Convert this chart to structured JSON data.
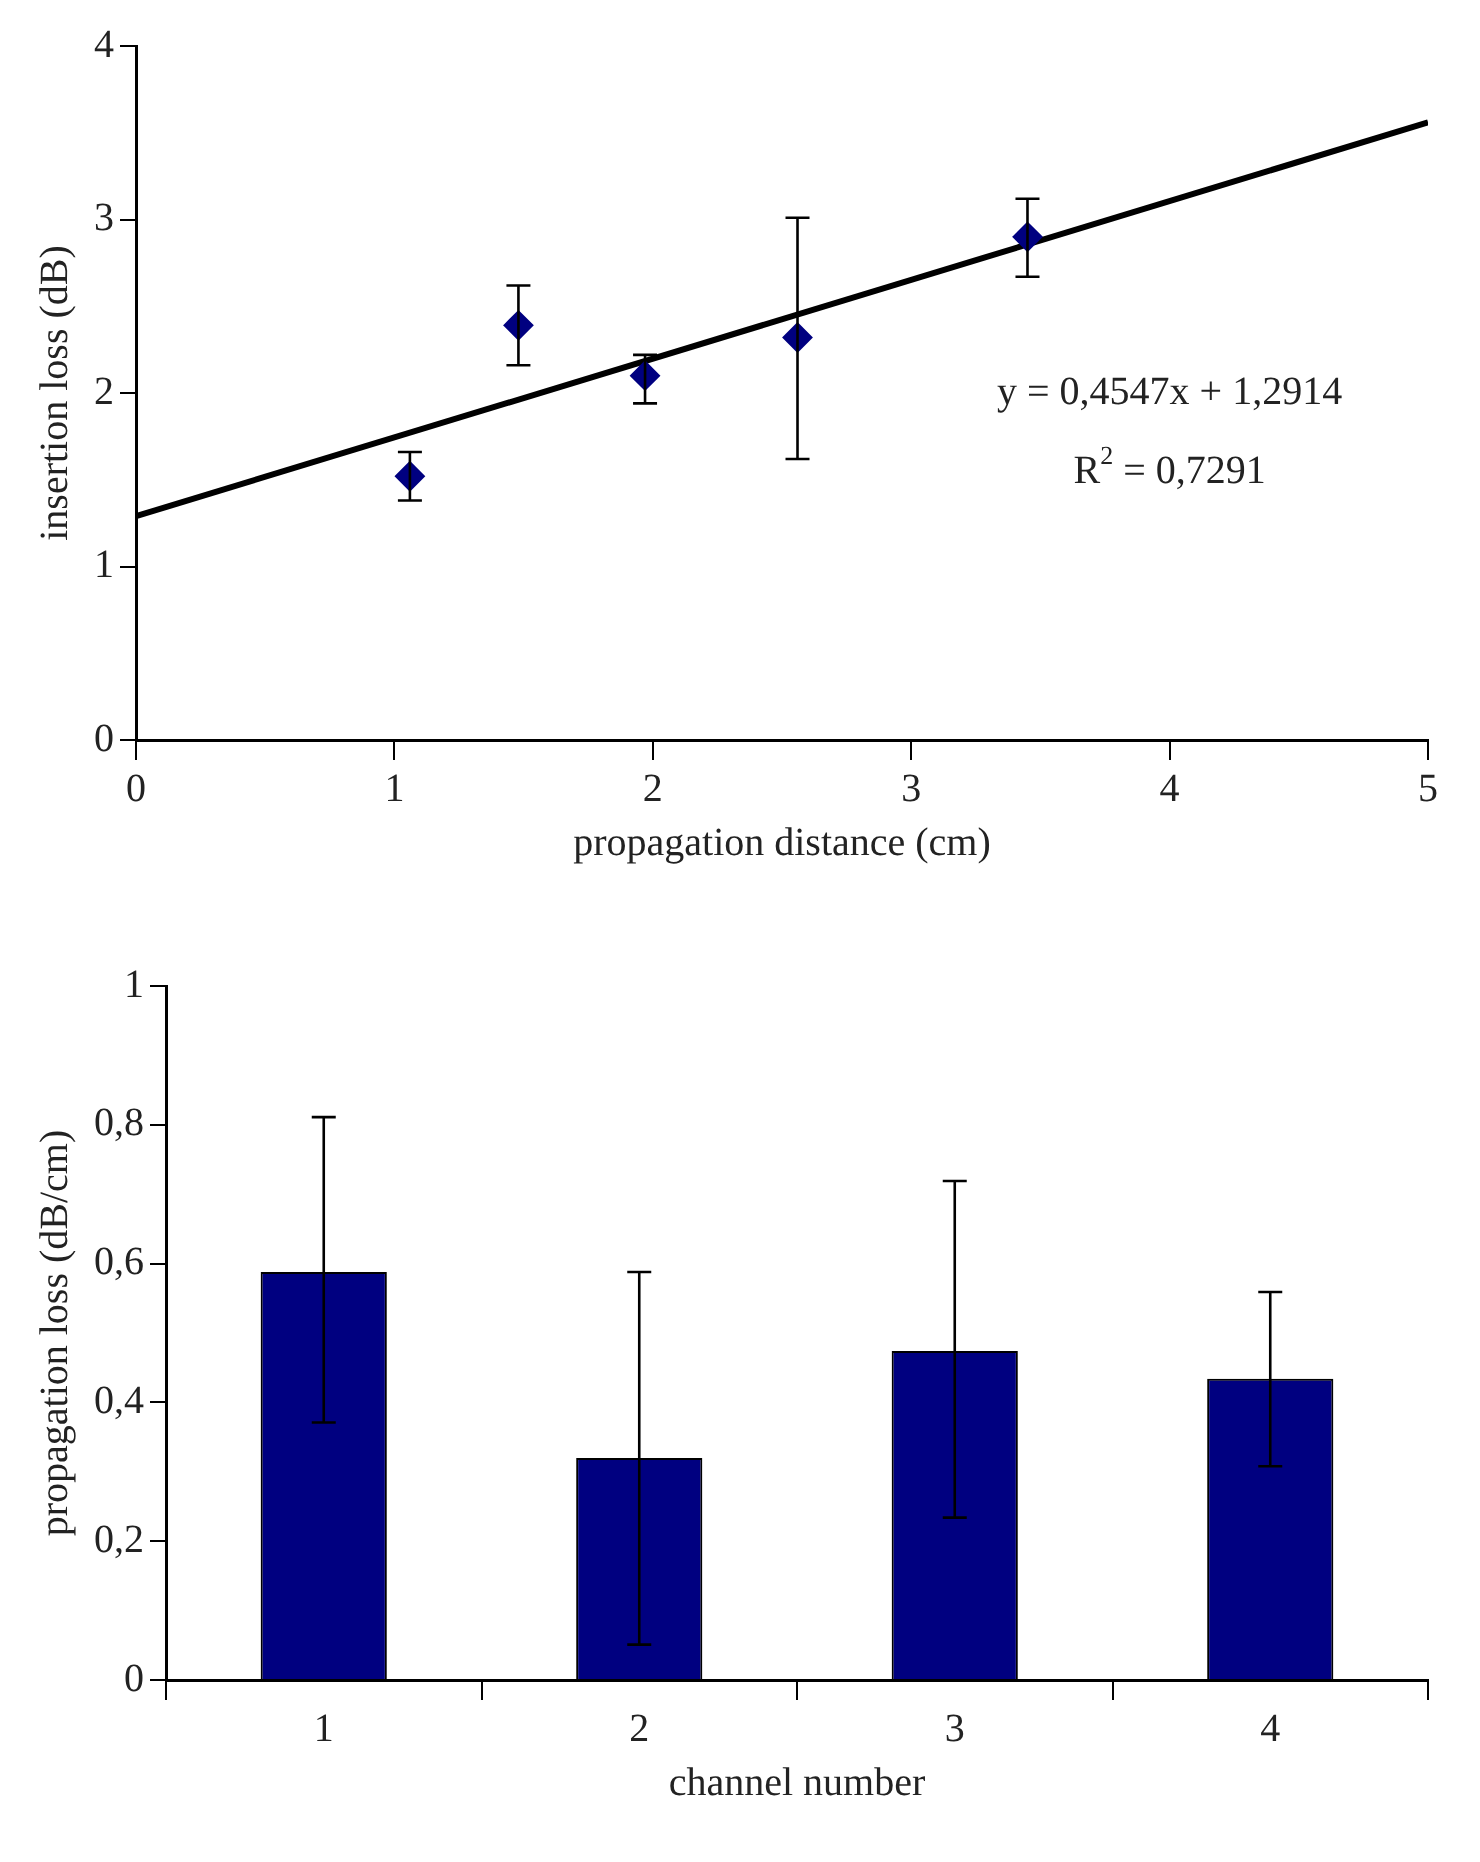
{
  "chart_data": [
    {
      "type": "scatter",
      "xlabel": "propagation distance (cm)",
      "ylabel": "insertion loss (dB)",
      "xlim": [
        0,
        5
      ],
      "ylim": [
        0,
        4
      ],
      "xticks": [
        0,
        1,
        2,
        3,
        4,
        5
      ],
      "yticks": [
        0,
        1,
        2,
        3,
        4
      ],
      "grid": false,
      "legend": false,
      "series": [
        {
          "type": "scatter",
          "color": "#000080",
          "marker": "diamond",
          "x": [
            1.06,
            1.48,
            1.97,
            2.56,
            3.45
          ],
          "values": [
            1.52,
            2.39,
            2.1,
            2.32,
            2.9
          ],
          "errors": [
            [
              1.38,
              1.66
            ],
            [
              2.16,
              2.62
            ],
            [
              1.94,
              2.22
            ],
            [
              1.62,
              3.01
            ],
            [
              2.67,
              3.12
            ]
          ]
        },
        {
          "type": "line",
          "color": "#000000",
          "marker": "none",
          "line_style": "solid",
          "x": [
            0,
            5
          ],
          "values": [
            1.29,
            3.56
          ]
        }
      ],
      "annotations": [
        "y = 0,4547x + 1,2914",
        "R$^{2}$ = 0,7291"
      ]
    },
    {
      "type": "bar",
      "xlabel": "channel number",
      "ylabel": "propagation loss (dB/cm)",
      "categories": [
        "1",
        "2",
        "3",
        "4"
      ],
      "ylim": [
        0,
        1
      ],
      "yticks": [
        0,
        {
          "value": 0.2,
          "label": "0,2"
        },
        {
          "value": 0.4,
          "label": "0,4"
        },
        {
          "value": 0.6,
          "label": "0,6"
        },
        {
          "value": 0.8,
          "label": "0,8"
        },
        1
      ],
      "grid": false,
      "legend": false,
      "series": [
        {
          "color": "#000080",
          "values": [
            0.588,
            0.32,
            0.474,
            0.434
          ],
          "errors": [
            [
              0.371,
              0.811
            ],
            [
              0.051,
              0.588
            ],
            [
              0.234,
              0.719
            ],
            [
              0.308,
              0.559
            ]
          ]
        }
      ]
    }
  ]
}
